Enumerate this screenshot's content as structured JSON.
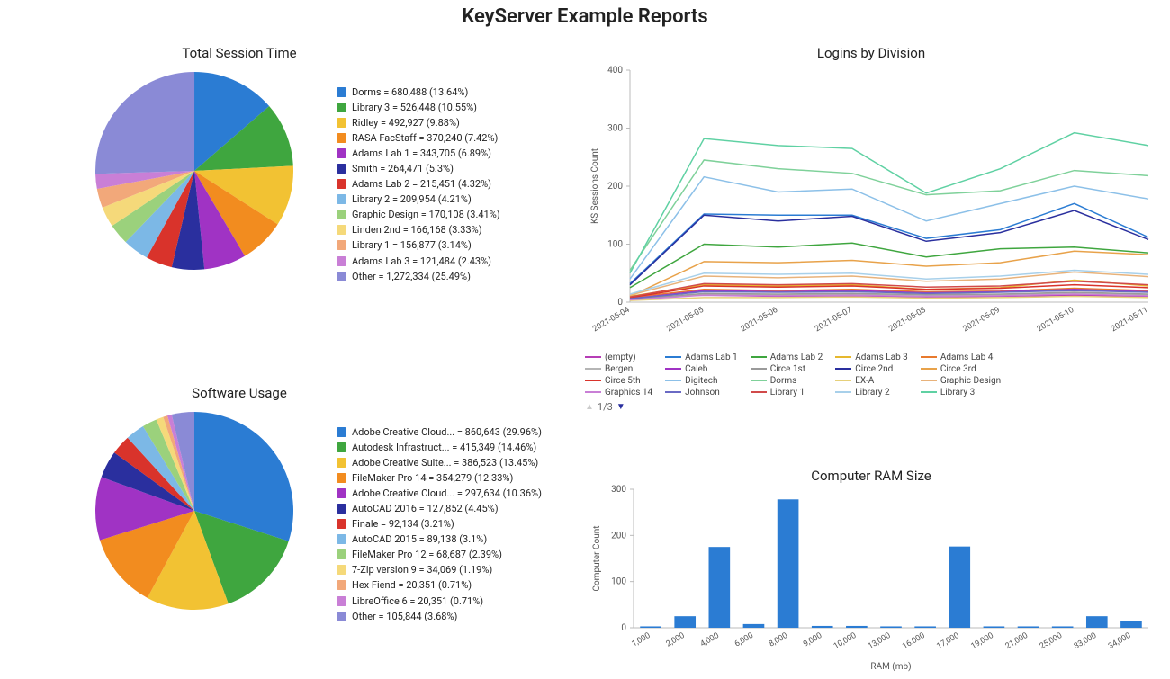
{
  "main_title": "KeyServer Example Reports",
  "colors": {
    "background": "#ffffff",
    "bar_fill": "#2b7cd3",
    "axis": "#bbbbbb"
  },
  "session_pie": {
    "title": "Total Session Time",
    "diameter": 220,
    "title_fontsize": 15,
    "legend_fontsize": 11,
    "slices": [
      {
        "label": "Dorms",
        "value": 680488,
        "pct": 13.64,
        "color": "#2b7cd3"
      },
      {
        "label": "Library 3",
        "value": 526448,
        "pct": 10.55,
        "color": "#3fa63f"
      },
      {
        "label": "Ridley",
        "value": 492927,
        "pct": 9.88,
        "color": "#f2c233"
      },
      {
        "label": "RASA FacStaff",
        "value": 370240,
        "pct": 7.42,
        "color": "#f28c1f"
      },
      {
        "label": "Adams Lab 1",
        "value": 343705,
        "pct": 6.89,
        "color": "#a033c4"
      },
      {
        "label": "Smith",
        "value": 264471,
        "pct": 5.3,
        "color": "#2a2f9e"
      },
      {
        "label": "Adams Lab 2",
        "value": 215451,
        "pct": 4.32,
        "color": "#d9332b"
      },
      {
        "label": "Library 2",
        "value": 209954,
        "pct": 4.21,
        "color": "#7cb8e6"
      },
      {
        "label": "Graphic Design",
        "value": 170108,
        "pct": 3.41,
        "color": "#9bd17c"
      },
      {
        "label": "Linden 2nd",
        "value": 166168,
        "pct": 3.33,
        "color": "#f5d97a"
      },
      {
        "label": "Library 1",
        "value": 156877,
        "pct": 3.14,
        "color": "#f2a87a"
      },
      {
        "label": "Adams Lab 3",
        "value": 121484,
        "pct": 2.43,
        "color": "#c97fd6"
      },
      {
        "label": "Other",
        "value": 1272334,
        "pct": 25.49,
        "color": "#8a8ad6"
      }
    ]
  },
  "software_pie": {
    "title": "Software Usage",
    "diameter": 220,
    "title_fontsize": 15,
    "legend_fontsize": 11,
    "slices": [
      {
        "label": "Adobe Creative Cloud...",
        "value": 860643,
        "pct": 29.96,
        "color": "#2b7cd3"
      },
      {
        "label": "Autodesk Infrastruct...",
        "value": 415349,
        "pct": 14.46,
        "color": "#3fa63f"
      },
      {
        "label": "Adobe Creative Suite...",
        "value": 386523,
        "pct": 13.45,
        "color": "#f2c233"
      },
      {
        "label": "FileMaker Pro 14",
        "value": 354279,
        "pct": 12.33,
        "color": "#f28c1f"
      },
      {
        "label": "Adobe Creative Cloud...",
        "value": 297634,
        "pct": 10.36,
        "color": "#a033c4"
      },
      {
        "label": "AutoCAD 2016",
        "value": 127852,
        "pct": 4.45,
        "color": "#2a2f9e"
      },
      {
        "label": "Finale",
        "value": 92134,
        "pct": 3.21,
        "color": "#d9332b"
      },
      {
        "label": "AutoCAD 2015",
        "value": 89138,
        "pct": 3.1,
        "color": "#7cb8e6"
      },
      {
        "label": "FileMaker Pro 12",
        "value": 68687,
        "pct": 2.39,
        "color": "#9bd17c"
      },
      {
        "label": "7-Zip version 9",
        "value": 34069,
        "pct": 1.19,
        "color": "#f5d97a"
      },
      {
        "label": "Hex Fiend",
        "value": 20351,
        "pct": 0.71,
        "color": "#f2a87a"
      },
      {
        "label": "LibreOffice 6",
        "value": 20351,
        "pct": 0.71,
        "color": "#c97fd6"
      },
      {
        "label": "Other",
        "value": 105844,
        "pct": 3.68,
        "color": "#8a8ad6"
      }
    ]
  },
  "logins_chart": {
    "title": "Logins by Division",
    "title_fontsize": 15,
    "ylabel": "KS Sessions Count",
    "label_fontsize": 10,
    "ylim": [
      0,
      400
    ],
    "ytick_step": 100,
    "x_categories": [
      "2021-05-04",
      "2021-05-05",
      "2021-05-06",
      "2021-05-07",
      "2021-05-08",
      "2021-05-09",
      "2021-05-10",
      "2021-05-11"
    ],
    "series": [
      {
        "name": "(empty)",
        "color": "#b63db6",
        "values": [
          8,
          12,
          10,
          11,
          9,
          10,
          12,
          10
        ]
      },
      {
        "name": "Adams Lab 1",
        "color": "#2b7cd3",
        "values": [
          32,
          152,
          150,
          150,
          110,
          125,
          170,
          112
        ]
      },
      {
        "name": "Adams Lab 2",
        "color": "#3fa63f",
        "values": [
          25,
          100,
          95,
          102,
          78,
          92,
          95,
          85
        ]
      },
      {
        "name": "Adams Lab 3",
        "color": "#e6b82e",
        "values": [
          10,
          30,
          28,
          30,
          22,
          25,
          38,
          28
        ]
      },
      {
        "name": "Adams Lab 4",
        "color": "#e87a2e",
        "values": [
          8,
          22,
          20,
          22,
          18,
          19,
          24,
          20
        ]
      },
      {
        "name": "Bergen",
        "color": "#b5b5b5",
        "values": [
          5,
          14,
          12,
          14,
          12,
          13,
          16,
          13
        ]
      },
      {
        "name": "Caleb",
        "color": "#a033c4",
        "values": [
          6,
          20,
          18,
          20,
          16,
          18,
          22,
          18
        ]
      },
      {
        "name": "Circe 1st",
        "color": "#9a9a9a",
        "values": [
          5,
          15,
          14,
          15,
          13,
          14,
          17,
          14
        ]
      },
      {
        "name": "Circe 2nd",
        "color": "#2a2f9e",
        "values": [
          30,
          150,
          140,
          148,
          105,
          120,
          158,
          108
        ]
      },
      {
        "name": "Circe 3rd",
        "color": "#e8a24a",
        "values": [
          10,
          70,
          68,
          72,
          62,
          68,
          88,
          82
        ]
      },
      {
        "name": "Circe 5th",
        "color": "#d9332b",
        "values": [
          8,
          28,
          26,
          28,
          22,
          24,
          30,
          25
        ]
      },
      {
        "name": "Digitech",
        "color": "#8cc0e8",
        "values": [
          40,
          216,
          190,
          195,
          140,
          170,
          200,
          178
        ]
      },
      {
        "name": "Dorms",
        "color": "#7fd19a",
        "values": [
          55,
          245,
          230,
          222,
          185,
          192,
          227,
          218
        ]
      },
      {
        "name": "EX-A",
        "color": "#e6d07a",
        "values": [
          3,
          8,
          8,
          9,
          7,
          8,
          10,
          8
        ]
      },
      {
        "name": "Graphic Design",
        "color": "#e8b27a",
        "values": [
          12,
          45,
          42,
          45,
          36,
          40,
          52,
          44
        ]
      },
      {
        "name": "Graphics 14",
        "color": "#c97fd6",
        "values": [
          4,
          12,
          11,
          12,
          10,
          11,
          14,
          11
        ]
      },
      {
        "name": "Johnson",
        "color": "#6a6ac4",
        "values": [
          6,
          18,
          17,
          18,
          15,
          17,
          20,
          17
        ]
      },
      {
        "name": "Library 1",
        "color": "#d14a4a",
        "values": [
          9,
          32,
          30,
          32,
          26,
          28,
          36,
          30
        ]
      },
      {
        "name": "Library 2",
        "color": "#a8d0ea",
        "values": [
          14,
          50,
          48,
          50,
          40,
          45,
          55,
          48
        ]
      },
      {
        "name": "Library 3",
        "color": "#5fd1a3",
        "values": [
          50,
          282,
          270,
          265,
          188,
          230,
          292,
          270
        ]
      }
    ],
    "legend_page": "1/3",
    "legend_columns": 5
  },
  "ram_chart": {
    "title": "Computer RAM Size",
    "title_fontsize": 15,
    "xlabel": "RAM (mb)",
    "ylabel": "Computer Count",
    "label_fontsize": 10,
    "ylim": [
      0,
      300
    ],
    "ytick_step": 100,
    "bar_color": "#2b7cd3",
    "categories": [
      "1,000",
      "2,000",
      "4,000",
      "6,000",
      "8,000",
      "9,000",
      "10,000",
      "13,000",
      "16,000",
      "17,000",
      "19,000",
      "21,000",
      "25,000",
      "33,000",
      "34,000"
    ],
    "values": [
      3,
      25,
      175,
      8,
      278,
      4,
      4,
      3,
      3,
      176,
      3,
      3,
      3,
      25,
      15
    ]
  }
}
